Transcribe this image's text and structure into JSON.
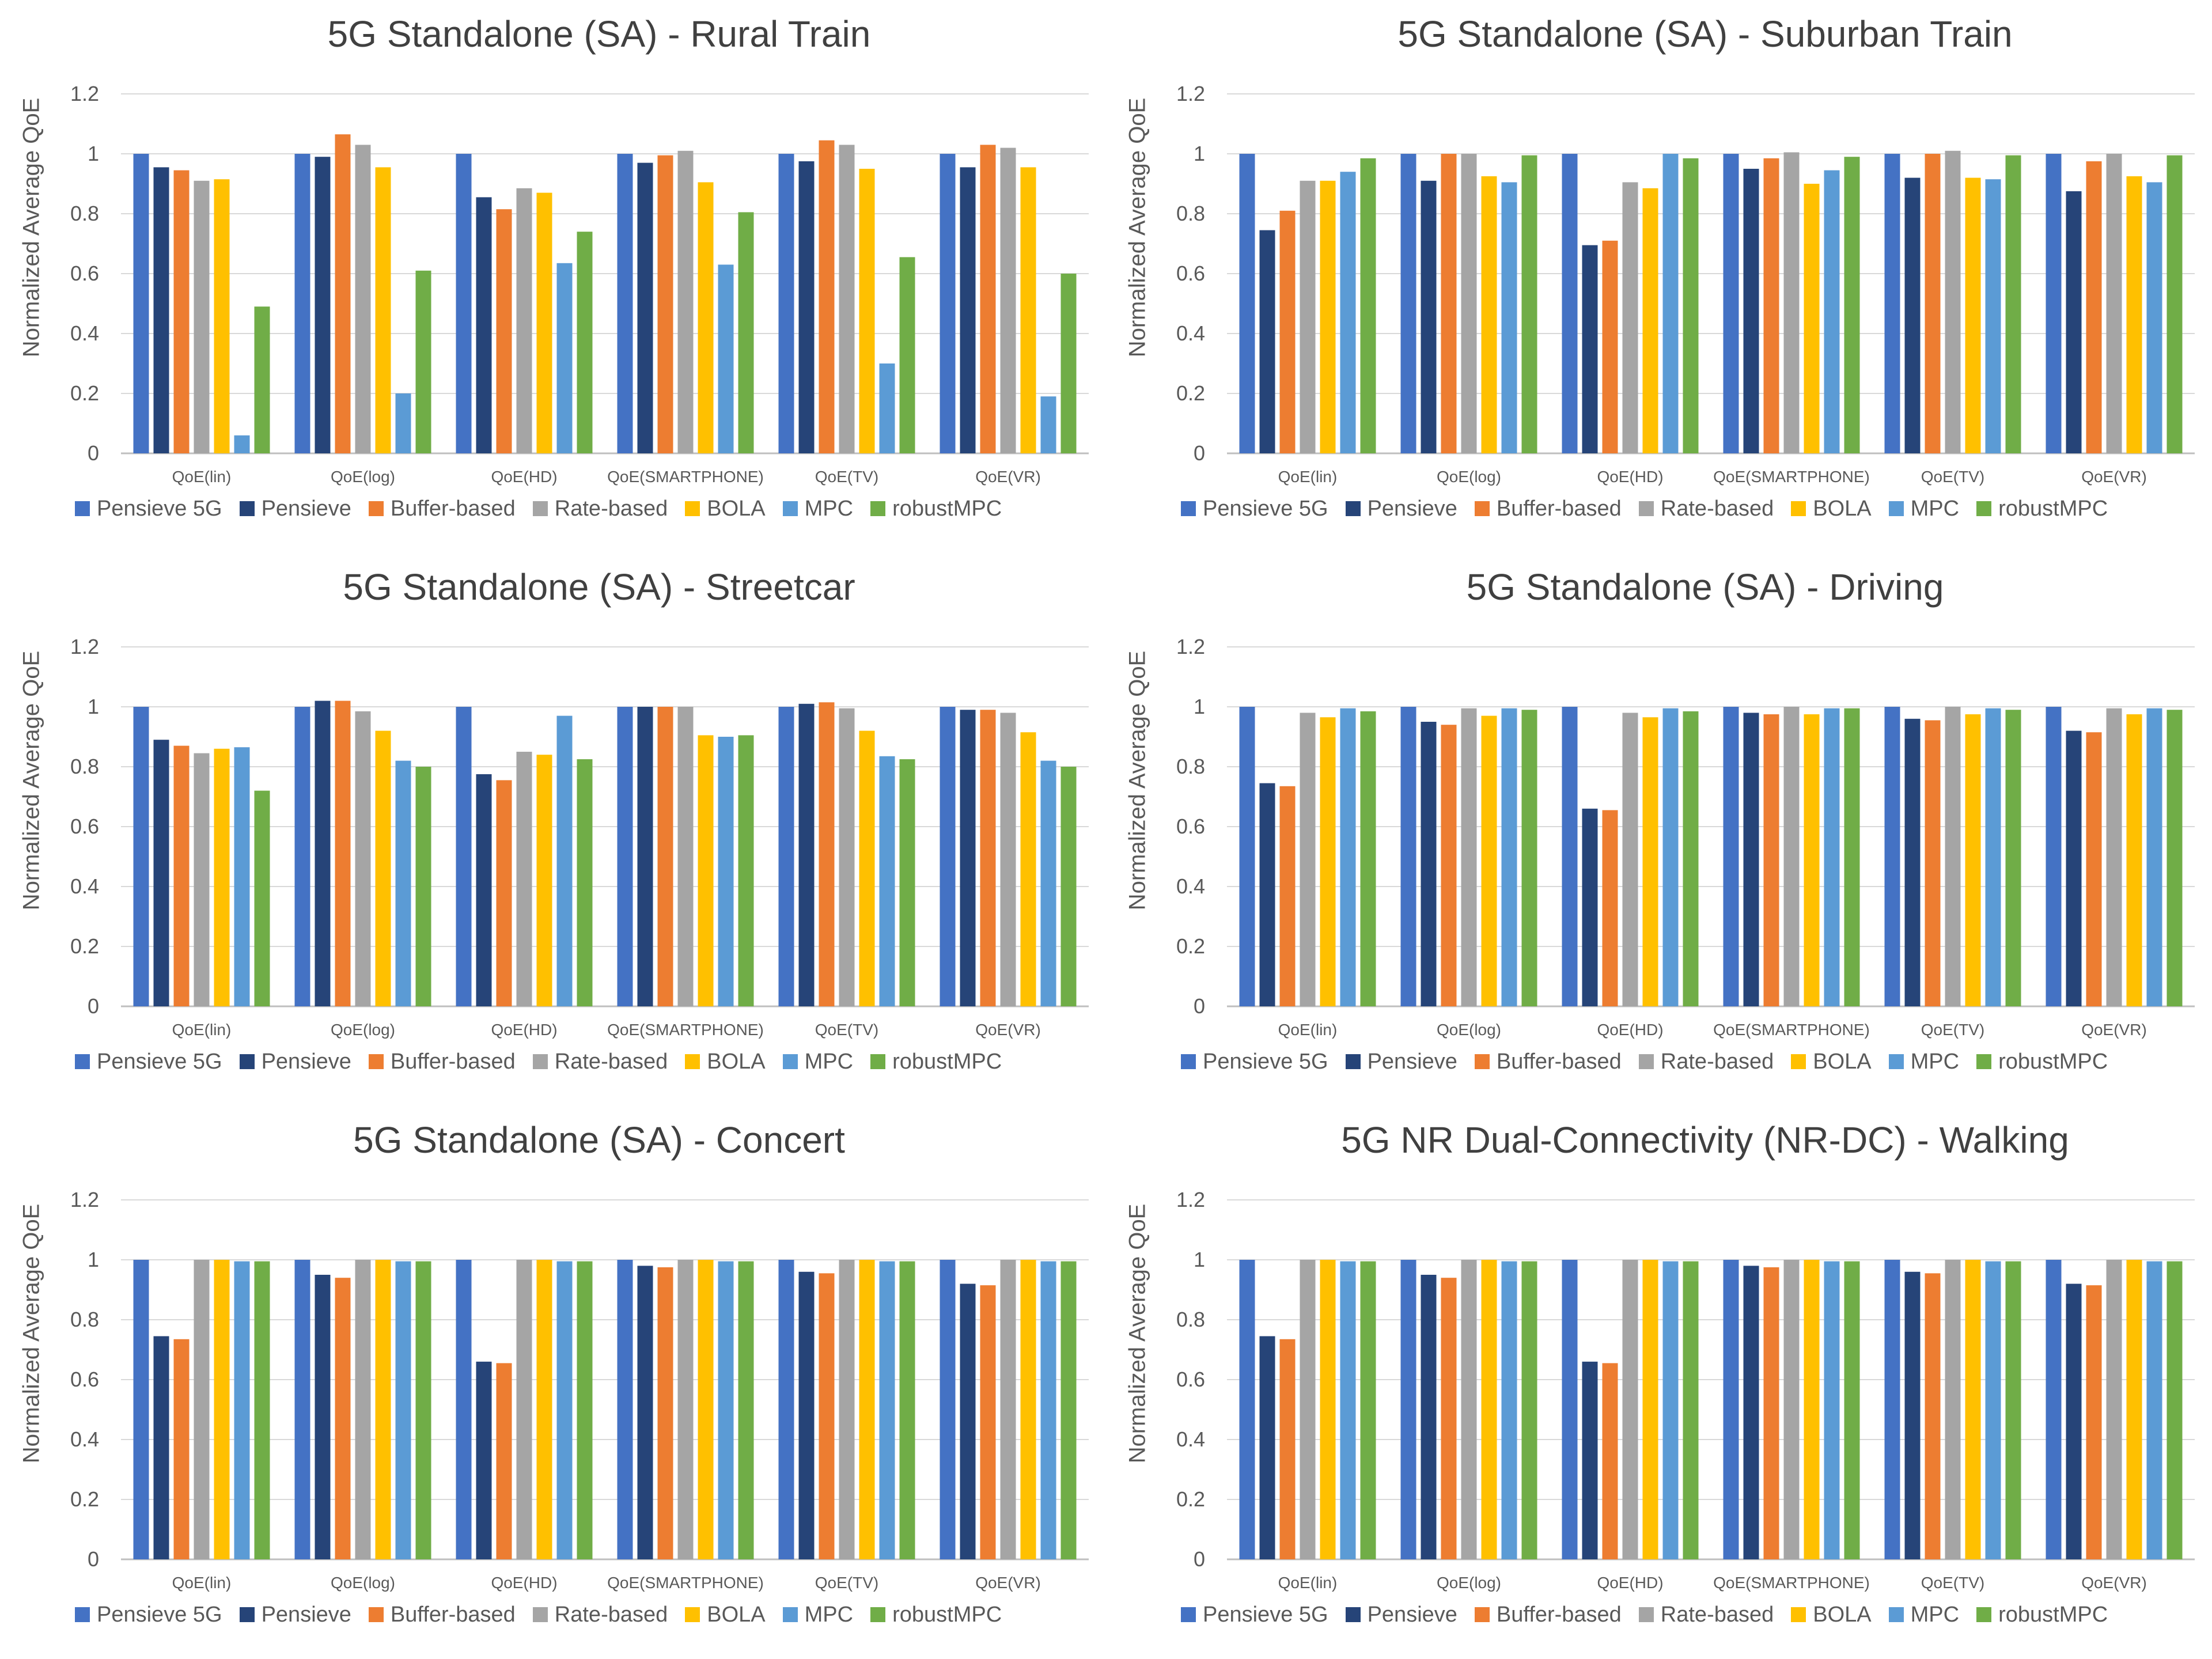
{
  "legend": [
    {
      "name": "Pensieve 5G",
      "color": "#4472C4"
    },
    {
      "name": "Pensieve",
      "color": "#264478"
    },
    {
      "name": "Buffer-based",
      "color": "#ED7D31"
    },
    {
      "name": "Rate-based",
      "color": "#A5A5A5"
    },
    {
      "name": "BOLA",
      "color": "#FFC000"
    },
    {
      "name": "MPC",
      "color": "#5B9BD5"
    },
    {
      "name": "robustMPC",
      "color": "#70AD47"
    }
  ],
  "chart_data": [
    {
      "type": "bar",
      "title": "5G Standalone (SA) - Rural Train",
      "ylabel": "Normalized Average QoE",
      "ylim": [
        0,
        1.2
      ],
      "yticks": [
        "0",
        "0.2",
        "0.4",
        "0.6",
        "0.8",
        "1",
        "1.2"
      ],
      "categories": [
        "QoE(lin)",
        "QoE(log)",
        "QoE(HD)",
        "QoE(SMARTPHONE)",
        "QoE(TV)",
        "QoE(VR)"
      ],
      "series": [
        {
          "name": "Pensieve 5G",
          "values": [
            1.0,
            1.0,
            1.0,
            1.0,
            1.0,
            1.0
          ]
        },
        {
          "name": "Pensieve",
          "values": [
            0.955,
            0.99,
            0.855,
            0.97,
            0.975,
            0.955
          ]
        },
        {
          "name": "Buffer-based",
          "values": [
            0.945,
            1.065,
            0.815,
            0.995,
            1.045,
            1.03
          ]
        },
        {
          "name": "Rate-based",
          "values": [
            0.91,
            1.03,
            0.885,
            1.01,
            1.03,
            1.02
          ]
        },
        {
          "name": "BOLA",
          "values": [
            0.915,
            0.955,
            0.87,
            0.905,
            0.95,
            0.955
          ]
        },
        {
          "name": "MPC",
          "values": [
            0.06,
            0.2,
            0.635,
            0.63,
            0.3,
            0.19
          ]
        },
        {
          "name": "robustMPC",
          "values": [
            0.49,
            0.61,
            0.74,
            0.805,
            0.655,
            0.6
          ]
        }
      ]
    },
    {
      "type": "bar",
      "title": "5G Standalone (SA) - Suburban Train",
      "ylabel": "Normalized Average QoE",
      "ylim": [
        0,
        1.2
      ],
      "yticks": [
        "0",
        "0.2",
        "0.4",
        "0.6",
        "0.8",
        "1",
        "1.2"
      ],
      "categories": [
        "QoE(lin)",
        "QoE(log)",
        "QoE(HD)",
        "QoE(SMARTPHONE)",
        "QoE(TV)",
        "QoE(VR)"
      ],
      "series": [
        {
          "name": "Pensieve 5G",
          "values": [
            1.0,
            1.0,
            1.0,
            1.0,
            1.0,
            1.0
          ]
        },
        {
          "name": "Pensieve",
          "values": [
            0.745,
            0.91,
            0.695,
            0.95,
            0.92,
            0.875
          ]
        },
        {
          "name": "Buffer-based",
          "values": [
            0.81,
            1.0,
            0.71,
            0.985,
            1.0,
            0.975
          ]
        },
        {
          "name": "Rate-based",
          "values": [
            0.91,
            1.0,
            0.905,
            1.005,
            1.01,
            1.0
          ]
        },
        {
          "name": "BOLA",
          "values": [
            0.91,
            0.925,
            0.885,
            0.9,
            0.92,
            0.925
          ]
        },
        {
          "name": "MPC",
          "values": [
            0.94,
            0.905,
            1.0,
            0.945,
            0.915,
            0.905
          ]
        },
        {
          "name": "robustMPC",
          "values": [
            0.985,
            0.995,
            0.985,
            0.99,
            0.995,
            0.995
          ]
        }
      ]
    },
    {
      "type": "bar",
      "title": "5G Standalone (SA) - Streetcar",
      "ylabel": "Normalized Average QoE",
      "ylim": [
        0,
        1.2
      ],
      "yticks": [
        "0",
        "0.2",
        "0.4",
        "0.6",
        "0.8",
        "1",
        "1.2"
      ],
      "categories": [
        "QoE(lin)",
        "QoE(log)",
        "QoE(HD)",
        "QoE(SMARTPHONE)",
        "QoE(TV)",
        "QoE(VR)"
      ],
      "series": [
        {
          "name": "Pensieve 5G",
          "values": [
            1.0,
            1.0,
            1.0,
            1.0,
            1.0,
            1.0
          ]
        },
        {
          "name": "Pensieve",
          "values": [
            0.89,
            1.02,
            0.775,
            1.0,
            1.01,
            0.99
          ]
        },
        {
          "name": "Buffer-based",
          "values": [
            0.87,
            1.02,
            0.755,
            1.0,
            1.015,
            0.99
          ]
        },
        {
          "name": "Rate-based",
          "values": [
            0.845,
            0.985,
            0.85,
            1.0,
            0.995,
            0.98
          ]
        },
        {
          "name": "BOLA",
          "values": [
            0.86,
            0.92,
            0.84,
            0.905,
            0.92,
            0.915
          ]
        },
        {
          "name": "MPC",
          "values": [
            0.865,
            0.82,
            0.97,
            0.9,
            0.835,
            0.82
          ]
        },
        {
          "name": "robustMPC",
          "values": [
            0.72,
            0.8,
            0.825,
            0.905,
            0.825,
            0.8
          ]
        }
      ]
    },
    {
      "type": "bar",
      "title": "5G Standalone (SA) - Driving",
      "ylabel": "Normalized Average QoE",
      "ylim": [
        0,
        1.2
      ],
      "yticks": [
        "0",
        "0.2",
        "0.4",
        "0.6",
        "0.8",
        "1",
        "1.2"
      ],
      "categories": [
        "QoE(lin)",
        "QoE(log)",
        "QoE(HD)",
        "QoE(SMARTPHONE)",
        "QoE(TV)",
        "QoE(VR)"
      ],
      "series": [
        {
          "name": "Pensieve 5G",
          "values": [
            1.0,
            1.0,
            1.0,
            1.0,
            1.0,
            1.0
          ]
        },
        {
          "name": "Pensieve",
          "values": [
            0.745,
            0.95,
            0.66,
            0.98,
            0.96,
            0.92
          ]
        },
        {
          "name": "Buffer-based",
          "values": [
            0.735,
            0.94,
            0.655,
            0.975,
            0.955,
            0.915
          ]
        },
        {
          "name": "Rate-based",
          "values": [
            0.98,
            0.995,
            0.98,
            1.0,
            1.0,
            0.995
          ]
        },
        {
          "name": "BOLA",
          "values": [
            0.965,
            0.97,
            0.965,
            0.975,
            0.975,
            0.975
          ]
        },
        {
          "name": "MPC",
          "values": [
            0.995,
            0.995,
            0.995,
            0.995,
            0.995,
            0.995
          ]
        },
        {
          "name": "robustMPC",
          "values": [
            0.985,
            0.99,
            0.985,
            0.995,
            0.99,
            0.99
          ]
        }
      ]
    },
    {
      "type": "bar",
      "title": "5G Standalone (SA) - Concert",
      "ylabel": "Normalized Average QoE",
      "ylim": [
        0,
        1.2
      ],
      "yticks": [
        "0",
        "0.2",
        "0.4",
        "0.6",
        "0.8",
        "1",
        "1.2"
      ],
      "categories": [
        "QoE(lin)",
        "QoE(log)",
        "QoE(HD)",
        "QoE(SMARTPHONE)",
        "QoE(TV)",
        "QoE(VR)"
      ],
      "series": [
        {
          "name": "Pensieve 5G",
          "values": [
            1.0,
            1.0,
            1.0,
            1.0,
            1.0,
            1.0
          ]
        },
        {
          "name": "Pensieve",
          "values": [
            0.745,
            0.95,
            0.66,
            0.98,
            0.96,
            0.92
          ]
        },
        {
          "name": "Buffer-based",
          "values": [
            0.735,
            0.94,
            0.655,
            0.975,
            0.955,
            0.915
          ]
        },
        {
          "name": "Rate-based",
          "values": [
            1.0,
            1.0,
            1.0,
            1.0,
            1.0,
            1.0
          ]
        },
        {
          "name": "BOLA",
          "values": [
            1.0,
            1.0,
            1.0,
            1.0,
            1.0,
            1.0
          ]
        },
        {
          "name": "MPC",
          "values": [
            0.995,
            0.995,
            0.995,
            0.995,
            0.995,
            0.995
          ]
        },
        {
          "name": "robustMPC",
          "values": [
            0.995,
            0.995,
            0.995,
            0.995,
            0.995,
            0.995
          ]
        }
      ]
    },
    {
      "type": "bar",
      "title": "5G NR Dual-Connectivity (NR-DC) - Walking",
      "ylabel": "Normalized Average QoE",
      "ylim": [
        0,
        1.2
      ],
      "yticks": [
        "0",
        "0.2",
        "0.4",
        "0.6",
        "0.8",
        "1",
        "1.2"
      ],
      "categories": [
        "QoE(lin)",
        "QoE(log)",
        "QoE(HD)",
        "QoE(SMARTPHONE)",
        "QoE(TV)",
        "QoE(VR)"
      ],
      "series": [
        {
          "name": "Pensieve 5G",
          "values": [
            1.0,
            1.0,
            1.0,
            1.0,
            1.0,
            1.0
          ]
        },
        {
          "name": "Pensieve",
          "values": [
            0.745,
            0.95,
            0.66,
            0.98,
            0.96,
            0.92
          ]
        },
        {
          "name": "Buffer-based",
          "values": [
            0.735,
            0.94,
            0.655,
            0.975,
            0.955,
            0.915
          ]
        },
        {
          "name": "Rate-based",
          "values": [
            1.0,
            1.0,
            1.0,
            1.0,
            1.0,
            1.0
          ]
        },
        {
          "name": "BOLA",
          "values": [
            1.0,
            1.0,
            1.0,
            1.0,
            1.0,
            1.0
          ]
        },
        {
          "name": "MPC",
          "values": [
            0.995,
            0.995,
            0.995,
            0.995,
            0.995,
            0.995
          ]
        },
        {
          "name": "robustMPC",
          "values": [
            0.995,
            0.995,
            0.995,
            0.995,
            0.995,
            0.995
          ]
        }
      ]
    }
  ]
}
